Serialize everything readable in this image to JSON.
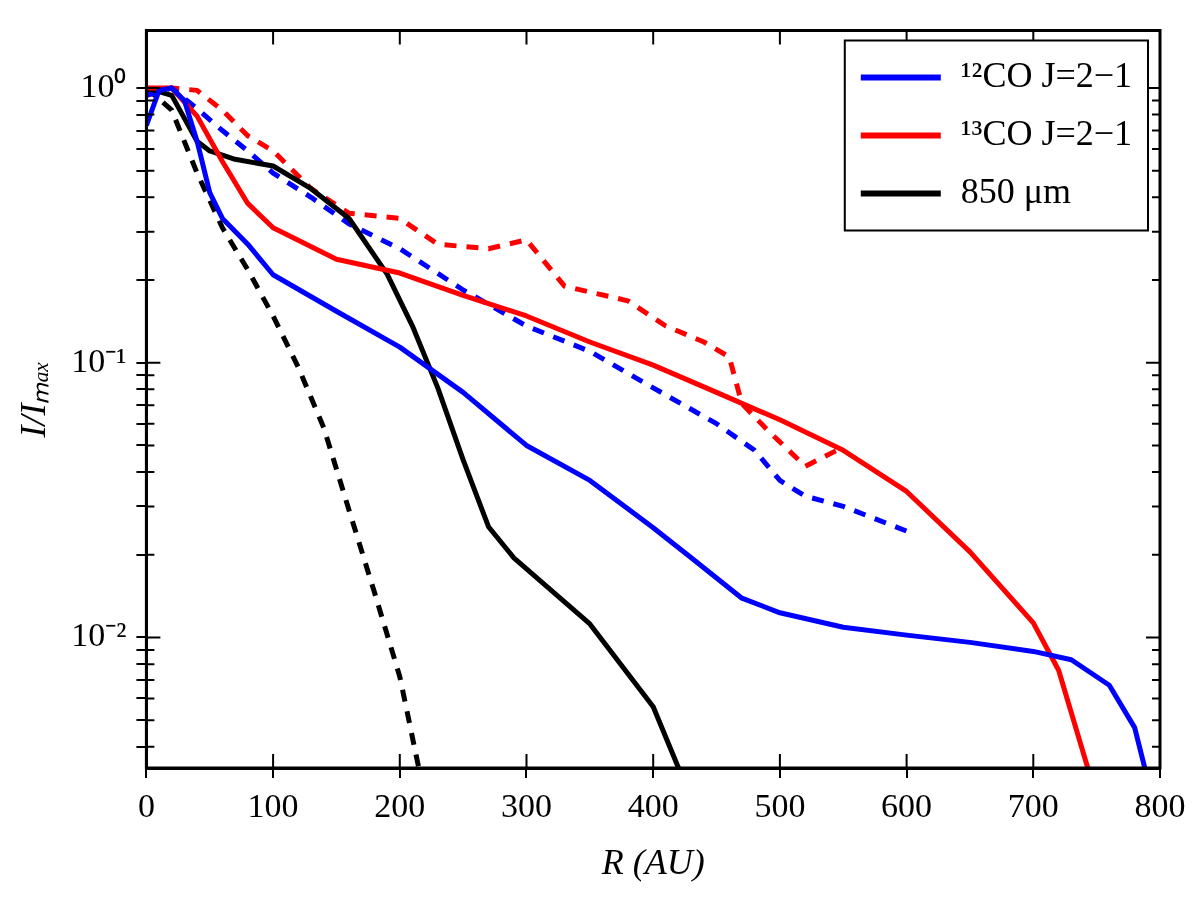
{
  "chart_data": {
    "type": "line",
    "xlabel": "R (AU)",
    "ylabel": "I/Iₘₐₓ",
    "log": "y",
    "xlim": [
      0,
      800
    ],
    "xticks": [
      0,
      100,
      200,
      300,
      400,
      500,
      600,
      700,
      800
    ],
    "ylim": [
      0.00335,
      1.62
    ],
    "yticks": [
      {
        "value": 0.004,
        "label": null
      },
      {
        "value": 0.005,
        "label": null
      },
      {
        "value": 0.006,
        "label": null
      },
      {
        "value": 0.007,
        "label": null
      },
      {
        "value": 0.008,
        "label": null
      },
      {
        "value": 0.009,
        "label": null
      },
      {
        "value": 0.01,
        "label": "10⁻²"
      },
      {
        "value": 0.02,
        "label": null
      },
      {
        "value": 0.03,
        "label": null
      },
      {
        "value": 0.04,
        "label": null
      },
      {
        "value": 0.05,
        "label": null
      },
      {
        "value": 0.06,
        "label": null
      },
      {
        "value": 0.07,
        "label": null
      },
      {
        "value": 0.08,
        "label": null
      },
      {
        "value": 0.09,
        "label": null
      },
      {
        "value": 0.1,
        "label": "10⁻¹"
      },
      {
        "value": 0.2,
        "label": null
      },
      {
        "value": 0.3,
        "label": null
      },
      {
        "value": 0.4,
        "label": null
      },
      {
        "value": 0.5,
        "label": null
      },
      {
        "value": 0.6,
        "label": null
      },
      {
        "value": 0.7,
        "label": null
      },
      {
        "value": 0.8,
        "label": null
      },
      {
        "value": 0.9,
        "label": null
      },
      {
        "value": 1,
        "label": "10⁰"
      }
    ],
    "grid": false,
    "legend": "top right",
    "marker": "none",
    "series": [
      {
        "name": "¹²CO J=2−1",
        "color": "#0000ff",
        "line_style": "solid",
        "x": [
          0,
          10,
          20,
          30,
          40,
          50,
          60,
          80,
          100,
          150,
          200,
          250,
          300,
          350,
          400,
          430,
          470,
          500,
          550,
          600,
          650,
          700,
          730,
          760,
          780,
          788
        ],
        "values": [
          0.73,
          0.98,
          1.0,
          0.9,
          0.64,
          0.416,
          0.335,
          0.27,
          0.209,
          0.154,
          0.114,
          0.078,
          0.05,
          0.0373,
          0.0251,
          0.0195,
          0.0139,
          0.0123,
          0.0109,
          0.0102,
          0.0096,
          0.0089,
          0.0083,
          0.0067,
          0.0047,
          0.00335
        ]
      },
      {
        "name": "¹³CO J=2−1",
        "color": "#ff0000",
        "line_style": "solid",
        "x": [
          0,
          20,
          40,
          60,
          80,
          100,
          150,
          200,
          250,
          300,
          350,
          400,
          450,
          500,
          550,
          600,
          650,
          700,
          720,
          743
        ],
        "values": [
          1.0,
          1.0,
          0.79,
          0.54,
          0.38,
          0.31,
          0.238,
          0.212,
          0.176,
          0.148,
          0.119,
          0.098,
          0.078,
          0.062,
          0.048,
          0.034,
          0.0205,
          0.0113,
          0.0076,
          0.00335
        ]
      },
      {
        "name": "850 μm",
        "color": "#000000",
        "line_style": "solid",
        "x": [
          0,
          20,
          40,
          50,
          70,
          100,
          130,
          160,
          190,
          210,
          230,
          250,
          270,
          290,
          350,
          400,
          420
        ],
        "values": [
          1.0,
          0.94,
          0.64,
          0.59,
          0.55,
          0.52,
          0.43,
          0.335,
          0.21,
          0.136,
          0.081,
          0.0443,
          0.0253,
          0.0195,
          0.0112,
          0.0056,
          0.00335
        ]
      },
      {
        "color": "#0000ff",
        "line_style": "dashed",
        "x": [
          0,
          20,
          40,
          60,
          80,
          100,
          130,
          160,
          200,
          250,
          300,
          350,
          400,
          450,
          480,
          500,
          520,
          550,
          600
        ],
        "values": [
          0.94,
          1.0,
          0.84,
          0.7,
          0.59,
          0.49,
          0.4,
          0.32,
          0.26,
          0.184,
          0.136,
          0.11,
          0.081,
          0.06,
          0.048,
          0.0373,
          0.0327,
          0.03,
          0.0244
        ]
      },
      {
        "color": "#ff0000",
        "line_style": "dashed",
        "x": [
          0,
          20,
          40,
          60,
          80,
          100,
          130,
          160,
          200,
          230,
          270,
          300,
          330,
          380,
          410,
          440,
          460,
          470,
          490,
          520,
          545
        ],
        "values": [
          0.94,
          1.0,
          0.98,
          0.83,
          0.67,
          0.59,
          0.43,
          0.35,
          0.335,
          0.27,
          0.26,
          0.28,
          0.19,
          0.168,
          0.136,
          0.119,
          0.105,
          0.071,
          0.057,
          0.042,
          0.048
        ]
      },
      {
        "color": "#000000",
        "line_style": "dashed",
        "x": [
          0,
          20,
          40,
          60,
          80,
          100,
          120,
          140,
          160,
          180,
          200,
          215
        ],
        "values": [
          1.0,
          0.83,
          0.49,
          0.31,
          0.218,
          0.148,
          0.096,
          0.058,
          0.029,
          0.0146,
          0.0072,
          0.00335
        ]
      }
    ]
  }
}
